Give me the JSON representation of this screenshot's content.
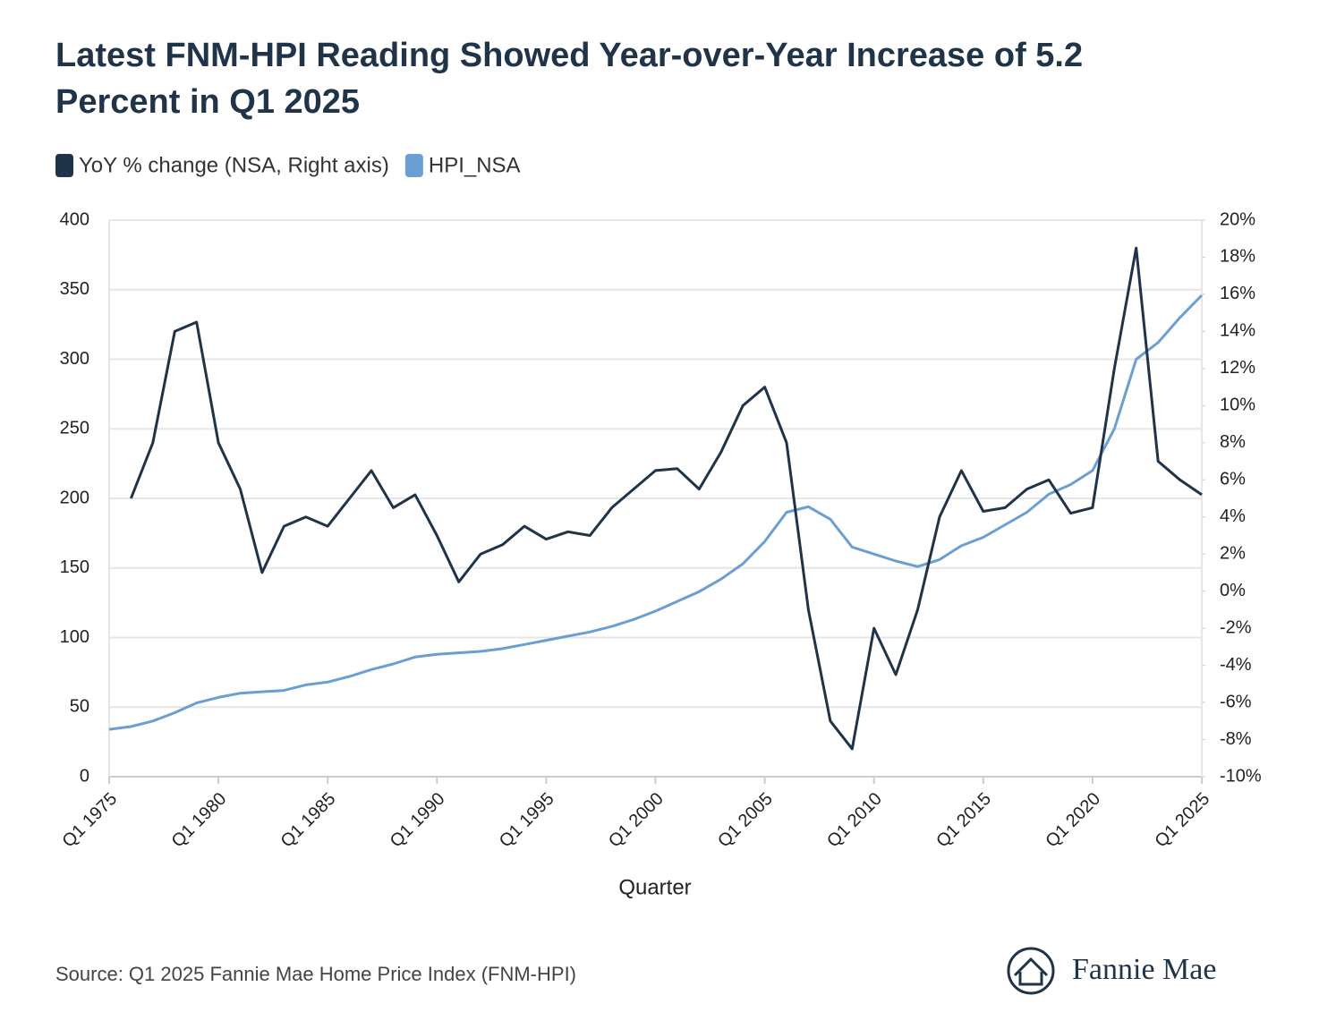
{
  "chart_data": {
    "type": "line",
    "title": "Latest FNM-HPI Reading Showed Year-over-Year Increase of 5.2 Percent in Q1 2025",
    "title_lines": [
      "Latest FNM-HPI Reading Showed Year-over-Year Increase of 5.2",
      "Percent in Q1 2025"
    ],
    "xlabel": "Quarter",
    "source": "Source: Q1 2025 Fannie Mae Home Price Index (FNM-HPI)",
    "logo": "Fannie Mae",
    "categories": [
      "Q1 1975",
      null,
      null,
      null,
      null,
      "Q1 1980",
      null,
      null,
      null,
      null,
      "Q1 1985",
      null,
      null,
      null,
      null,
      "Q1 1990",
      null,
      null,
      null,
      null,
      "Q1 1995",
      null,
      null,
      null,
      null,
      "Q1 2000",
      null,
      null,
      null,
      null,
      "Q1 2005",
      null,
      null,
      null,
      null,
      "Q1 2010",
      null,
      null,
      null,
      null,
      "Q1 2015",
      null,
      null,
      null,
      null,
      "Q1 2020",
      null,
      null,
      null,
      null,
      "Q1 2025"
    ],
    "series": [
      {
        "name": "YoY % change (NSA, Right axis)",
        "color": "#1f3349",
        "axis": "y2",
        "values": [
          null,
          5,
          8,
          14,
          14.5,
          8,
          5.5,
          1,
          3.5,
          4,
          3.5,
          5,
          6.5,
          4.5,
          5.2,
          3,
          0.5,
          2,
          2.5,
          3.5,
          2.8,
          3.2,
          3,
          4.5,
          5.5,
          6.5,
          6.6,
          5.5,
          7.5,
          10,
          11,
          8,
          -1,
          -7,
          -8.5,
          -2,
          -4.5,
          -1,
          4,
          6.5,
          4.3,
          4.5,
          5.5,
          6,
          4.2,
          4.5,
          12,
          18.5,
          7,
          6,
          5.2
        ]
      },
      {
        "name": "HPI_NSA",
        "color": "#6a9fd4",
        "values": [
          34,
          36,
          40,
          46,
          53,
          57,
          60,
          61,
          62,
          66,
          68,
          72,
          77,
          81,
          86,
          88,
          89,
          90,
          92,
          95,
          98,
          101,
          104,
          108,
          113,
          119,
          126,
          133,
          142,
          153,
          169,
          190,
          194,
          185,
          165,
          160,
          155,
          151,
          156,
          166,
          172,
          181,
          190,
          203,
          210,
          220,
          250,
          300,
          312,
          330,
          346
        ]
      }
    ],
    "ylim": [
      0,
      400
    ],
    "yticks": [
      0,
      50,
      100,
      150,
      200,
      250,
      300,
      350,
      400
    ],
    "y2lim": [
      -10,
      20
    ],
    "y2ticks": [
      {
        "value": -10,
        "label": "-10%"
      },
      {
        "value": -8,
        "label": "-8%"
      },
      {
        "value": -6,
        "label": "-6%"
      },
      {
        "value": -4,
        "label": "-4%"
      },
      {
        "value": -2,
        "label": "-2%"
      },
      {
        "value": 0,
        "label": "0%"
      },
      {
        "value": 2,
        "label": "2%"
      },
      {
        "value": 4,
        "label": "4%"
      },
      {
        "value": 6,
        "label": "6%"
      },
      {
        "value": 8,
        "label": "8%"
      },
      {
        "value": 10,
        "label": "10%"
      },
      {
        "value": 12,
        "label": "12%"
      },
      {
        "value": 14,
        "label": "14%"
      },
      {
        "value": 16,
        "label": "16%"
      },
      {
        "value": 18,
        "label": "18%"
      },
      {
        "value": 20,
        "label": "20%"
      }
    ],
    "grid": true
  }
}
